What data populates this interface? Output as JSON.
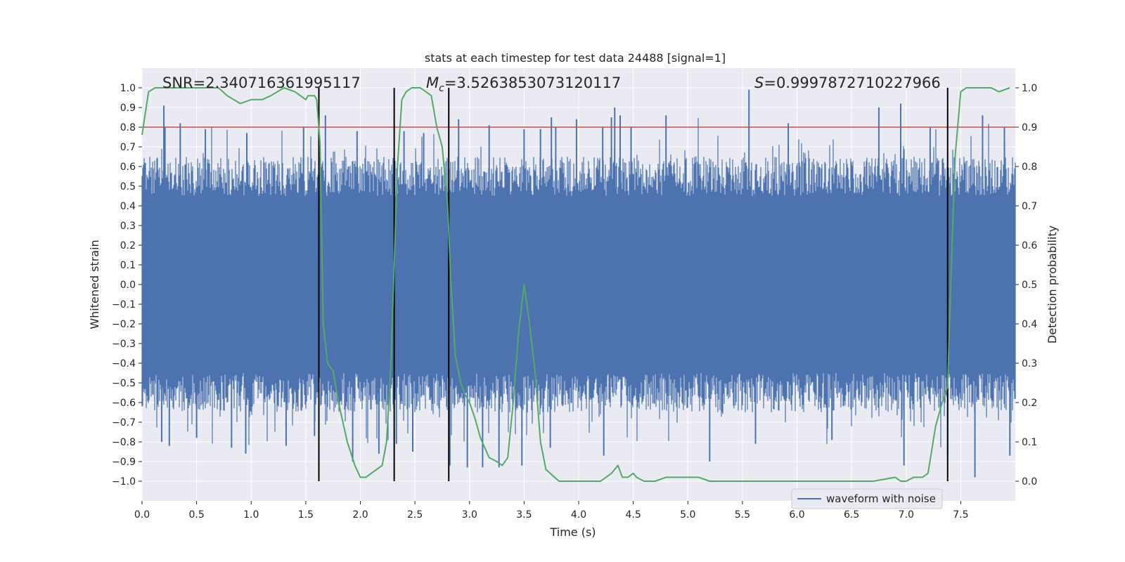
{
  "chart_data": {
    "type": "line",
    "title": "stats at each timestep for test data 24488 [signal=1]",
    "xlabel": "Time (s)",
    "ylabel": "Whitened strain",
    "y2label": "Detection probability",
    "xlim": [
      0.0,
      8.0
    ],
    "ylim": [
      -1.1,
      1.1
    ],
    "y2lim": [
      -0.05,
      1.05
    ],
    "grid": true,
    "x_ticks": [
      0.0,
      0.5,
      1.0,
      1.5,
      2.0,
      2.5,
      3.0,
      3.5,
      4.0,
      4.5,
      5.0,
      5.5,
      6.0,
      6.5,
      7.0,
      7.5
    ],
    "x_tick_labels": [
      "0.0",
      "0.5",
      "1.0",
      "1.5",
      "2.0",
      "2.5",
      "3.0",
      "3.5",
      "4.0",
      "4.5",
      "5.0",
      "5.5",
      "6.0",
      "6.5",
      "7.0",
      "7.5"
    ],
    "y_ticks": [
      1.0,
      0.9,
      0.8,
      0.7,
      0.6,
      0.5,
      0.4,
      0.3,
      0.2,
      0.1,
      0.0,
      -0.1,
      -0.2,
      -0.3,
      -0.4,
      -0.5,
      -0.6,
      -0.7,
      -0.8,
      -0.9,
      -1.0
    ],
    "y_tick_labels": [
      "1.0",
      "0.9",
      "0.8",
      "0.7",
      "0.6",
      "0.5",
      "0.4",
      "0.3",
      "0.2",
      "0.1",
      "0.0",
      "−0.1",
      "−0.2",
      "−0.3",
      "−0.4",
      "−0.5",
      "−0.6",
      "−0.7",
      "−0.8",
      "−0.9",
      "−1.0"
    ],
    "y2_ticks": [
      1.0,
      0.9,
      0.8,
      0.7,
      0.6,
      0.5,
      0.4,
      0.3,
      0.2,
      0.1,
      0.0
    ],
    "y2_tick_labels": [
      "1.0",
      "0.9",
      "0.8",
      "0.7",
      "0.6",
      "0.5",
      "0.4",
      "0.3",
      "0.2",
      "0.1",
      "0.0"
    ],
    "annotations": {
      "snr": "SNR=2.340716361995117",
      "mc_symbol": "M",
      "mc_subscript": "c",
      "mc_value": "=3.5263853073120117",
      "s_symbol": "S",
      "s_value": "=0.9997872710227966"
    },
    "threshold": {
      "value": 0.9,
      "axis": "y2",
      "color": "#c44e52"
    },
    "segment_boundaries": [
      1.62,
      2.31,
      2.81,
      7.38
    ],
    "legend": {
      "label": "waveform with noise",
      "location": "lower-right"
    },
    "colors": {
      "waveform": "#4c72b0",
      "probability": "#55a868",
      "threshold": "#c44e52",
      "boundary": "#000000",
      "axes_bg": "#eaeaf2",
      "grid": "#ffffff"
    },
    "series": [
      {
        "name": "waveform with noise",
        "axis": "y",
        "style": "dense noise, values between -1.0 and 1.0",
        "envelope_typical": [
          -0.45,
          0.45
        ],
        "positive_peaks": [
          [
            0.2,
            0.91
          ],
          [
            0.21,
            0.8
          ],
          [
            0.35,
            0.82
          ],
          [
            0.58,
            0.79
          ],
          [
            0.96,
            0.77
          ],
          [
            1.48,
            0.8
          ],
          [
            1.68,
            0.86
          ],
          [
            1.97,
            0.78
          ],
          [
            2.4,
            0.78
          ],
          [
            2.58,
            0.77
          ],
          [
            2.9,
            0.84
          ],
          [
            3.18,
            0.81
          ],
          [
            3.5,
            0.79
          ],
          [
            3.65,
            0.79
          ],
          [
            3.75,
            0.85
          ],
          [
            3.79,
            0.8
          ],
          [
            3.98,
            0.84
          ],
          [
            4.22,
            0.8
          ],
          [
            4.3,
            0.85
          ],
          [
            4.33,
            0.9
          ],
          [
            4.38,
            0.86
          ],
          [
            4.48,
            0.8
          ],
          [
            4.8,
            0.86
          ],
          [
            5.56,
            0.99
          ],
          [
            5.92,
            0.82
          ],
          [
            6.75,
            0.9
          ],
          [
            6.95,
            0.92
          ],
          [
            7.22,
            0.8
          ],
          [
            7.7,
            0.86
          ],
          [
            7.9,
            0.8
          ]
        ],
        "negative_peaks": [
          [
            0.18,
            -0.8
          ],
          [
            0.25,
            -0.82
          ],
          [
            0.5,
            -0.78
          ],
          [
            0.82,
            -0.83
          ],
          [
            0.95,
            -0.86
          ],
          [
            1.32,
            -0.82
          ],
          [
            1.58,
            -0.77
          ],
          [
            1.93,
            -0.9
          ],
          [
            2.17,
            -0.86
          ],
          [
            2.33,
            -0.81
          ],
          [
            2.48,
            -0.85
          ],
          [
            2.82,
            -0.92
          ],
          [
            2.98,
            -0.93
          ],
          [
            3.12,
            -0.93
          ],
          [
            3.27,
            -0.93
          ],
          [
            3.48,
            -0.92
          ],
          [
            3.74,
            -0.83
          ],
          [
            4.23,
            -0.87
          ],
          [
            5.2,
            -0.9
          ],
          [
            5.62,
            -0.81
          ],
          [
            6.32,
            -0.79
          ],
          [
            6.98,
            -0.92
          ],
          [
            7.38,
            -0.87
          ],
          [
            7.63,
            -0.98
          ],
          [
            7.95,
            -0.87
          ]
        ]
      },
      {
        "name": "Detection probability",
        "axis": "y2",
        "x": [
          0.0,
          0.06,
          0.12,
          0.3,
          0.5,
          0.7,
          0.78,
          0.9,
          1.0,
          1.1,
          1.18,
          1.3,
          1.4,
          1.5,
          1.52,
          1.58,
          1.6,
          1.63,
          1.66,
          1.7,
          1.75,
          1.8,
          1.88,
          1.95,
          2.0,
          2.05,
          2.1,
          2.2,
          2.24,
          2.28,
          2.31,
          2.34,
          2.38,
          2.42,
          2.47,
          2.55,
          2.65,
          2.7,
          2.75,
          2.8,
          2.83,
          2.87,
          2.92,
          2.96,
          3.0,
          3.05,
          3.1,
          3.18,
          3.25,
          3.3,
          3.35,
          3.4,
          3.45,
          3.5,
          3.55,
          3.6,
          3.65,
          3.7,
          3.78,
          3.82,
          3.9,
          4.0,
          4.1,
          4.2,
          4.25,
          4.3,
          4.36,
          4.4,
          4.45,
          4.5,
          4.53,
          4.6,
          4.7,
          4.8,
          4.9,
          5.0,
          5.1,
          5.2,
          5.3,
          5.5,
          5.7,
          6.0,
          6.4,
          6.7,
          6.9,
          6.95,
          7.0,
          7.07,
          7.1,
          7.15,
          7.2,
          7.27,
          7.33,
          7.38,
          7.42,
          7.45,
          7.5,
          7.55,
          7.62,
          7.7,
          7.78,
          7.85,
          7.95
        ],
        "values": [
          0.88,
          0.99,
          1.0,
          1.0,
          1.0,
          1.0,
          0.98,
          0.96,
          0.97,
          0.97,
          0.98,
          1.0,
          0.99,
          0.97,
          0.98,
          0.98,
          0.97,
          0.86,
          0.4,
          0.3,
          0.28,
          0.2,
          0.1,
          0.04,
          0.01,
          0.01,
          0.02,
          0.04,
          0.1,
          0.3,
          0.55,
          0.8,
          0.97,
          0.99,
          1.0,
          1.0,
          0.98,
          0.9,
          0.85,
          0.7,
          0.5,
          0.32,
          0.25,
          0.22,
          0.2,
          0.16,
          0.11,
          0.06,
          0.05,
          0.04,
          0.06,
          0.2,
          0.38,
          0.5,
          0.4,
          0.28,
          0.1,
          0.03,
          0.01,
          0.0,
          0.0,
          0.0,
          0.0,
          0.0,
          0.01,
          0.02,
          0.04,
          0.01,
          0.01,
          0.02,
          0.01,
          0.0,
          0.0,
          0.01,
          0.01,
          0.01,
          0.01,
          0.0,
          0.0,
          0.0,
          0.0,
          0.0,
          0.0,
          0.0,
          0.01,
          0.0,
          0.0,
          0.01,
          0.01,
          0.01,
          0.02,
          0.14,
          0.2,
          0.24,
          0.6,
          0.83,
          0.99,
          1.0,
          1.0,
          1.0,
          1.0,
          0.99,
          1.0
        ]
      }
    ]
  }
}
